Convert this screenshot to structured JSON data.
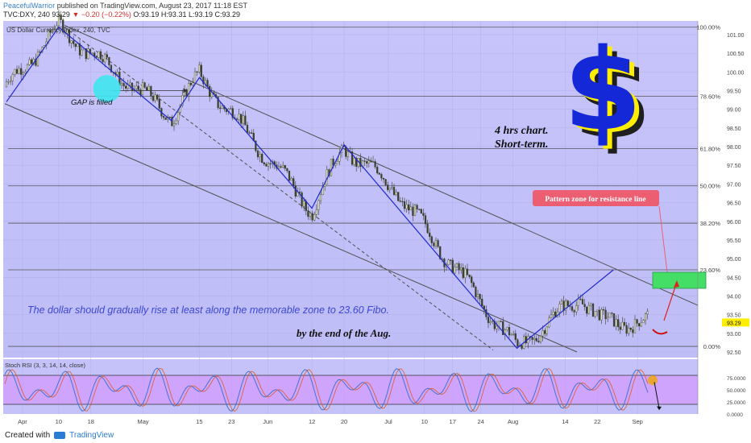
{
  "header": {
    "author": "PeacefulWarrior",
    "published": "published on TradingView.com, August 23, 2017 11:18 EST",
    "ticker": "TVC:DXY, 240",
    "last": "93.29",
    "change": "▼ −0.20 (−0.22%)",
    "ohlc": "O:93.19 H:93.31 L:93.19 C:93.29"
  },
  "chart_data": {
    "type": "candlestick",
    "title": "US Dollar Currency Index, 240, TVC",
    "timeframe": "4 hrs",
    "ylim": [
      92.3,
      101.3
    ],
    "price_ticks": [
      "101.00",
      "100.50",
      "100.00",
      "99.50",
      "99.00",
      "98.50",
      "98.00",
      "97.50",
      "97.00",
      "96.50",
      "96.00",
      "95.50",
      "95.00",
      "94.50",
      "94.00",
      "93.50",
      "93.00",
      "92.50"
    ],
    "x_ticks": [
      "Apr",
      "10",
      "18",
      "May",
      "15",
      "23",
      "Jun",
      "12",
      "20",
      "Jul",
      "10",
      "17",
      "24",
      "Aug",
      "14",
      "22",
      "Sep"
    ],
    "last_price": "93.29",
    "fibonacci": [
      {
        "label": "100.00%",
        "price": 101.2
      },
      {
        "label": "78.60%",
        "price": 99.35
      },
      {
        "label": "61.80%",
        "price": 97.95
      },
      {
        "label": "50.00%",
        "price": 96.95
      },
      {
        "label": "38.20%",
        "price": 95.95
      },
      {
        "label": "23.60%",
        "price": 94.7
      },
      {
        "label": "0.00%",
        "price": 92.65
      }
    ],
    "price_path": [
      {
        "x": "Mar 28",
        "y": 99.6
      },
      {
        "x": "Apr 10",
        "y": 101.2
      },
      {
        "x": "May 8",
        "y": 98.8
      },
      {
        "x": "May 15",
        "y": 99.9
      },
      {
        "x": "Jun 12",
        "y": 96.3
      },
      {
        "x": "Jun 20",
        "y": 98.0
      },
      {
        "x": "Jul 3",
        "y": 96.8
      },
      {
        "x": "Aug 2",
        "y": 92.6
      },
      {
        "x": "Aug 18",
        "y": 94.0
      },
      {
        "x": "Aug 23",
        "y": 93.3
      }
    ],
    "indicator": {
      "name": "Stoch RSI (3, 3, 14, 14, close)",
      "ticks": [
        "75.0000",
        "50.0000",
        "25.0000",
        "0.0000"
      ]
    },
    "annotations": {
      "gap": "GAP is filled",
      "timeframe_note": "4 hrs chart.",
      "term_note": "Short-term.",
      "pattern_zone": "Pattern zone for resistance line",
      "forecast": "The dollar should gradually rise at least along the memorable zone to 23.60 Fibo.",
      "deadline": "by the end of the Aug.",
      "logo": "$"
    }
  },
  "footer": {
    "created": "Created with",
    "brand": "TradingView"
  },
  "colors": {
    "panel_bg": "#cbc9ff",
    "candle": "#3a3f2c",
    "trend": "#1f2acd",
    "fib_line": "#555555",
    "pattern_box": "#44dd66",
    "pattern_label": "#ec5f72",
    "gap_circle": "#3ee6ee",
    "stoch_band": "#d88cff",
    "dollar_yellow": "#ffee00",
    "dollar_blue": "#1428d8"
  }
}
